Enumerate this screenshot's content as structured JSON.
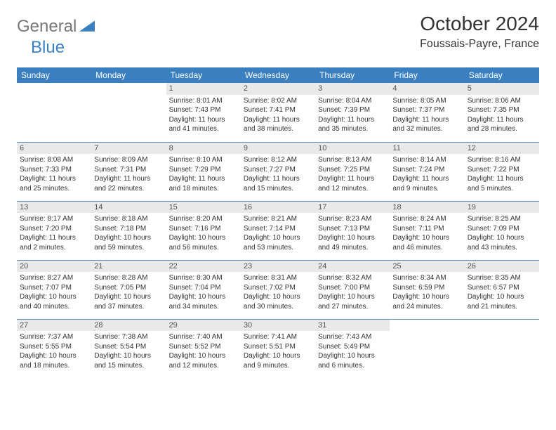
{
  "brand": {
    "part1": "General",
    "part2": "Blue"
  },
  "title": "October 2024",
  "location": "Foussais-Payre, France",
  "colors": {
    "header_bg": "#3a7fbf",
    "header_text": "#ffffff",
    "daynum_bg": "#e9e9e9",
    "daynum_text": "#555555",
    "border": "#5a8fb8",
    "body_text": "#333333",
    "logo_gray": "#777777",
    "logo_blue": "#3a7fbf",
    "page_bg": "#ffffff"
  },
  "day_headers": [
    "Sunday",
    "Monday",
    "Tuesday",
    "Wednesday",
    "Thursday",
    "Friday",
    "Saturday"
  ],
  "weeks": [
    [
      {
        "day": "",
        "sunrise": "",
        "sunset": "",
        "daylight": ""
      },
      {
        "day": "",
        "sunrise": "",
        "sunset": "",
        "daylight": ""
      },
      {
        "day": "1",
        "sunrise": "Sunrise: 8:01 AM",
        "sunset": "Sunset: 7:43 PM",
        "daylight": "Daylight: 11 hours and 41 minutes."
      },
      {
        "day": "2",
        "sunrise": "Sunrise: 8:02 AM",
        "sunset": "Sunset: 7:41 PM",
        "daylight": "Daylight: 11 hours and 38 minutes."
      },
      {
        "day": "3",
        "sunrise": "Sunrise: 8:04 AM",
        "sunset": "Sunset: 7:39 PM",
        "daylight": "Daylight: 11 hours and 35 minutes."
      },
      {
        "day": "4",
        "sunrise": "Sunrise: 8:05 AM",
        "sunset": "Sunset: 7:37 PM",
        "daylight": "Daylight: 11 hours and 32 minutes."
      },
      {
        "day": "5",
        "sunrise": "Sunrise: 8:06 AM",
        "sunset": "Sunset: 7:35 PM",
        "daylight": "Daylight: 11 hours and 28 minutes."
      }
    ],
    [
      {
        "day": "6",
        "sunrise": "Sunrise: 8:08 AM",
        "sunset": "Sunset: 7:33 PM",
        "daylight": "Daylight: 11 hours and 25 minutes."
      },
      {
        "day": "7",
        "sunrise": "Sunrise: 8:09 AM",
        "sunset": "Sunset: 7:31 PM",
        "daylight": "Daylight: 11 hours and 22 minutes."
      },
      {
        "day": "8",
        "sunrise": "Sunrise: 8:10 AM",
        "sunset": "Sunset: 7:29 PM",
        "daylight": "Daylight: 11 hours and 18 minutes."
      },
      {
        "day": "9",
        "sunrise": "Sunrise: 8:12 AM",
        "sunset": "Sunset: 7:27 PM",
        "daylight": "Daylight: 11 hours and 15 minutes."
      },
      {
        "day": "10",
        "sunrise": "Sunrise: 8:13 AM",
        "sunset": "Sunset: 7:25 PM",
        "daylight": "Daylight: 11 hours and 12 minutes."
      },
      {
        "day": "11",
        "sunrise": "Sunrise: 8:14 AM",
        "sunset": "Sunset: 7:24 PM",
        "daylight": "Daylight: 11 hours and 9 minutes."
      },
      {
        "day": "12",
        "sunrise": "Sunrise: 8:16 AM",
        "sunset": "Sunset: 7:22 PM",
        "daylight": "Daylight: 11 hours and 5 minutes."
      }
    ],
    [
      {
        "day": "13",
        "sunrise": "Sunrise: 8:17 AM",
        "sunset": "Sunset: 7:20 PM",
        "daylight": "Daylight: 11 hours and 2 minutes."
      },
      {
        "day": "14",
        "sunrise": "Sunrise: 8:18 AM",
        "sunset": "Sunset: 7:18 PM",
        "daylight": "Daylight: 10 hours and 59 minutes."
      },
      {
        "day": "15",
        "sunrise": "Sunrise: 8:20 AM",
        "sunset": "Sunset: 7:16 PM",
        "daylight": "Daylight: 10 hours and 56 minutes."
      },
      {
        "day": "16",
        "sunrise": "Sunrise: 8:21 AM",
        "sunset": "Sunset: 7:14 PM",
        "daylight": "Daylight: 10 hours and 53 minutes."
      },
      {
        "day": "17",
        "sunrise": "Sunrise: 8:23 AM",
        "sunset": "Sunset: 7:13 PM",
        "daylight": "Daylight: 10 hours and 49 minutes."
      },
      {
        "day": "18",
        "sunrise": "Sunrise: 8:24 AM",
        "sunset": "Sunset: 7:11 PM",
        "daylight": "Daylight: 10 hours and 46 minutes."
      },
      {
        "day": "19",
        "sunrise": "Sunrise: 8:25 AM",
        "sunset": "Sunset: 7:09 PM",
        "daylight": "Daylight: 10 hours and 43 minutes."
      }
    ],
    [
      {
        "day": "20",
        "sunrise": "Sunrise: 8:27 AM",
        "sunset": "Sunset: 7:07 PM",
        "daylight": "Daylight: 10 hours and 40 minutes."
      },
      {
        "day": "21",
        "sunrise": "Sunrise: 8:28 AM",
        "sunset": "Sunset: 7:05 PM",
        "daylight": "Daylight: 10 hours and 37 minutes."
      },
      {
        "day": "22",
        "sunrise": "Sunrise: 8:30 AM",
        "sunset": "Sunset: 7:04 PM",
        "daylight": "Daylight: 10 hours and 34 minutes."
      },
      {
        "day": "23",
        "sunrise": "Sunrise: 8:31 AM",
        "sunset": "Sunset: 7:02 PM",
        "daylight": "Daylight: 10 hours and 30 minutes."
      },
      {
        "day": "24",
        "sunrise": "Sunrise: 8:32 AM",
        "sunset": "Sunset: 7:00 PM",
        "daylight": "Daylight: 10 hours and 27 minutes."
      },
      {
        "day": "25",
        "sunrise": "Sunrise: 8:34 AM",
        "sunset": "Sunset: 6:59 PM",
        "daylight": "Daylight: 10 hours and 24 minutes."
      },
      {
        "day": "26",
        "sunrise": "Sunrise: 8:35 AM",
        "sunset": "Sunset: 6:57 PM",
        "daylight": "Daylight: 10 hours and 21 minutes."
      }
    ],
    [
      {
        "day": "27",
        "sunrise": "Sunrise: 7:37 AM",
        "sunset": "Sunset: 5:55 PM",
        "daylight": "Daylight: 10 hours and 18 minutes."
      },
      {
        "day": "28",
        "sunrise": "Sunrise: 7:38 AM",
        "sunset": "Sunset: 5:54 PM",
        "daylight": "Daylight: 10 hours and 15 minutes."
      },
      {
        "day": "29",
        "sunrise": "Sunrise: 7:40 AM",
        "sunset": "Sunset: 5:52 PM",
        "daylight": "Daylight: 10 hours and 12 minutes."
      },
      {
        "day": "30",
        "sunrise": "Sunrise: 7:41 AM",
        "sunset": "Sunset: 5:51 PM",
        "daylight": "Daylight: 10 hours and 9 minutes."
      },
      {
        "day": "31",
        "sunrise": "Sunrise: 7:43 AM",
        "sunset": "Sunset: 5:49 PM",
        "daylight": "Daylight: 10 hours and 6 minutes."
      },
      {
        "day": "",
        "sunrise": "",
        "sunset": "",
        "daylight": ""
      },
      {
        "day": "",
        "sunrise": "",
        "sunset": "",
        "daylight": ""
      }
    ]
  ]
}
